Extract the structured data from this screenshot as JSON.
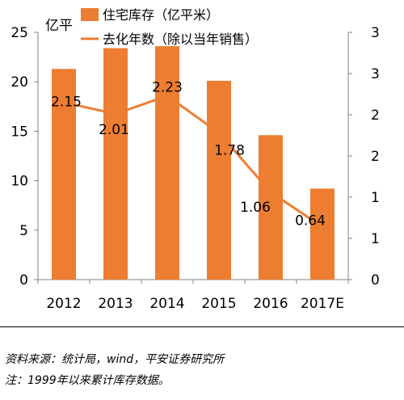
{
  "chart_data": {
    "type": "bar+line",
    "categories": [
      "2012",
      "2013",
      "2014",
      "2015",
      "2016",
      "2017E"
    ],
    "series": [
      {
        "name": "住宅库存（亿平米）",
        "type": "bar",
        "axis": "left",
        "values": [
          21.3,
          23.4,
          23.6,
          20.1,
          14.6,
          9.2
        ]
      },
      {
        "name": "去化年数（除以当年销售）",
        "type": "line",
        "axis": "right",
        "values": [
          2.15,
          2.01,
          2.23,
          1.78,
          1.06,
          0.64
        ],
        "labels": [
          "2.15",
          "2.01",
          "2.23",
          "1.78",
          "1.06",
          "0.64"
        ]
      }
    ],
    "y_left": {
      "label": "亿平",
      "range": [
        0,
        25
      ],
      "ticks": [
        0,
        5,
        10,
        15,
        20,
        25
      ]
    },
    "y_right": {
      "range": [
        0,
        3
      ],
      "tick_values": [
        0,
        0.5,
        1,
        1.5,
        2,
        2.5,
        3
      ],
      "tick_labels": [
        "0",
        "1",
        "1",
        "2",
        "2",
        "3",
        "3"
      ]
    },
    "legend": "top",
    "grid": false
  },
  "colors": {
    "series": "#ED7D31",
    "axis": "#808080",
    "text": "#000000"
  },
  "notes": {
    "source": "资料来源：统计局，wind，平安证券研究所",
    "note": "注：1999年以来累计库存数据。"
  }
}
